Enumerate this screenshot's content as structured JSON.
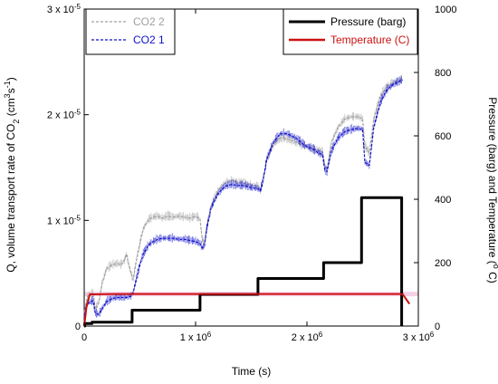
{
  "chart_data": {
    "type": "line",
    "x_axis": {
      "label": "Time (s)",
      "lim": [
        0,
        3000000
      ],
      "ticks": [
        {
          "value": 0,
          "mantissa": "0",
          "exp": ""
        },
        {
          "value": 1000000,
          "mantissa": "1 x 10",
          "exp": "6"
        },
        {
          "value": 2000000,
          "mantissa": "2 x 10",
          "exp": "6"
        },
        {
          "value": 3000000,
          "mantissa": "3 x 10",
          "exp": "6"
        }
      ]
    },
    "y_axis_left": {
      "label_prefix": "Q, volume transport rate of CO",
      "label_sub": "2",
      "label_mid": " (cm",
      "label_sup1": "3",
      "label_s": "s",
      "label_sup2": "-1",
      "label_end": ")",
      "lim": [
        0,
        3e-05
      ],
      "ticks": [
        {
          "value": 0,
          "mantissa": "0",
          "exp": ""
        },
        {
          "value": 1e-05,
          "mantissa": "1 x 10",
          "exp": "-5"
        },
        {
          "value": 2e-05,
          "mantissa": "2 x 10",
          "exp": "-5"
        },
        {
          "value": 3e-05,
          "mantissa": "3 x 10",
          "exp": "-5"
        }
      ]
    },
    "y_axis_right": {
      "label_prefix": "Pressure (barg) and Temperature (",
      "label_sup": "o",
      "label_end": " C)",
      "lim": [
        0,
        1000
      ],
      "ticks": [
        0,
        200,
        400,
        600,
        800,
        1000
      ]
    },
    "legend_left": [
      {
        "name": "CO2 2",
        "color": "#a0a0a0",
        "style": "dashed"
      },
      {
        "name": "CO2 1",
        "color": "#1010c8",
        "style": "dashed"
      }
    ],
    "legend_right": [
      {
        "name": "Pressure (barg)",
        "color": "#000000",
        "style": "solid"
      },
      {
        "name": "Temperature (C)",
        "color": "#cc1010",
        "style": "solid"
      }
    ],
    "series": [
      {
        "name": "CO2 2",
        "axis": "left",
        "color": "#a0a0a0",
        "x": [
          0,
          30000,
          60000,
          80000,
          100000,
          130000,
          160000,
          200000,
          250000,
          300000,
          330000,
          360000,
          380000,
          400000,
          420000,
          440000,
          470000,
          500000,
          530000,
          580000,
          620000,
          660000,
          700000,
          750000,
          800000,
          850000,
          900000,
          950000,
          1000000,
          1040000,
          1060000,
          1080000,
          1100000,
          1140000,
          1200000,
          1260000,
          1320000,
          1380000,
          1440000,
          1500000,
          1560000,
          1580000,
          1600000,
          1640000,
          1700000,
          1760000,
          1820000,
          1900000,
          1980000,
          2060000,
          2100000,
          2140000,
          2160000,
          2180000,
          2220000,
          2280000,
          2340000,
          2400000,
          2460000,
          2500000,
          2520000,
          2560000,
          2600000,
          2660000,
          2720000,
          2780000,
          2820000,
          2860000
        ],
        "y": [
          1.2e-06,
          2.8e-06,
          3e-06,
          3.1e-06,
          1.6e-06,
          2.2e-06,
          4e-06,
          5.4e-06,
          5.8e-06,
          5.9e-06,
          5.8e-06,
          6.2e-06,
          6.8e-06,
          5.8e-06,
          5e-06,
          4.4e-06,
          6.3e-06,
          7.8e-06,
          9.2e-06,
          1.01e-05,
          1.03e-05,
          1.04e-05,
          1.02e-05,
          1.04e-05,
          1.03e-05,
          1.04e-05,
          1.03e-05,
          1.02e-05,
          1.04e-05,
          1.01e-05,
          8.2e-06,
          7.8e-06,
          9.4e-06,
          1.14e-05,
          1.28e-05,
          1.35e-05,
          1.38e-05,
          1.36e-05,
          1.35e-05,
          1.33e-05,
          1.33e-05,
          1.28e-05,
          1.34e-05,
          1.58e-05,
          1.72e-05,
          1.78e-05,
          1.77e-05,
          1.74e-05,
          1.7e-05,
          1.68e-05,
          1.66e-05,
          1.65e-05,
          1.52e-05,
          1.48e-05,
          1.74e-05,
          1.88e-05,
          1.96e-05,
          1.98e-05,
          1.98e-05,
          1.96e-05,
          1.7e-05,
          1.64e-05,
          1.96e-05,
          2.18e-05,
          2.27e-05,
          2.3e-05,
          2.32e-05,
          2.34e-05
        ]
      },
      {
        "name": "CO2 1",
        "axis": "left",
        "color": "#1010c8",
        "x": [
          0,
          30000,
          60000,
          80000,
          100000,
          130000,
          160000,
          200000,
          250000,
          300000,
          330000,
          360000,
          380000,
          400000,
          420000,
          440000,
          470000,
          500000,
          530000,
          580000,
          620000,
          660000,
          700000,
          750000,
          800000,
          850000,
          900000,
          950000,
          1000000,
          1040000,
          1060000,
          1080000,
          1100000,
          1140000,
          1200000,
          1260000,
          1320000,
          1380000,
          1440000,
          1500000,
          1560000,
          1580000,
          1600000,
          1640000,
          1700000,
          1760000,
          1820000,
          1900000,
          1980000,
          2060000,
          2100000,
          2140000,
          2160000,
          2180000,
          2220000,
          2280000,
          2340000,
          2400000,
          2460000,
          2500000,
          2520000,
          2560000,
          2600000,
          2660000,
          2720000,
          2780000,
          2820000,
          2860000
        ],
        "y": [
          1e-06,
          2.1e-06,
          2.3e-06,
          2.4e-06,
          1.2e-06,
          1.1e-06,
          1.6e-06,
          2.3e-06,
          2.6e-06,
          2.7e-06,
          2.7e-06,
          2.7e-06,
          2.7e-06,
          2.8e-06,
          2.8e-06,
          3.2e-06,
          4.5e-06,
          5.8e-06,
          6.8e-06,
          7.7e-06,
          8e-06,
          8.2e-06,
          8.3e-06,
          8.3e-06,
          8.3e-06,
          8.2e-06,
          8.2e-06,
          8.1e-06,
          8e-06,
          7.8e-06,
          7.4e-06,
          7.6e-06,
          9.2e-06,
          1.12e-05,
          1.25e-05,
          1.32e-05,
          1.34e-05,
          1.33e-05,
          1.33e-05,
          1.31e-05,
          1.3e-05,
          1.28e-05,
          1.35e-05,
          1.58e-05,
          1.74e-05,
          1.82e-05,
          1.82e-05,
          1.78e-05,
          1.71e-05,
          1.67e-05,
          1.64e-05,
          1.62e-05,
          1.48e-05,
          1.46e-05,
          1.66e-05,
          1.78e-05,
          1.84e-05,
          1.86e-05,
          1.87e-05,
          1.86e-05,
          1.55e-05,
          1.52e-05,
          1.88e-05,
          2.12e-05,
          2.24e-05,
          2.29e-05,
          2.31e-05,
          2.33e-05
        ]
      },
      {
        "name": "Pressure (barg)",
        "axis": "right",
        "color": "#000000",
        "x": [
          0,
          5000,
          5000,
          70000,
          70000,
          430000,
          430000,
          1040000,
          1040000,
          1560000,
          1560000,
          2150000,
          2150000,
          2490000,
          2490000,
          2850000,
          2850000
        ],
        "y": [
          0,
          0,
          8,
          8,
          12,
          12,
          50,
          50,
          100,
          100,
          150,
          150,
          200,
          200,
          405,
          405,
          0
        ]
      },
      {
        "name": "Temperature (C)",
        "axis": "right",
        "color": "#cc1010",
        "x": [
          0,
          20000,
          50000,
          300000,
          800000,
          1500000,
          2200000,
          2840000,
          2860000,
          2920000
        ],
        "y": [
          0,
          60,
          100,
          101,
          101,
          101,
          101,
          101,
          100,
          70
        ]
      }
    ]
  }
}
